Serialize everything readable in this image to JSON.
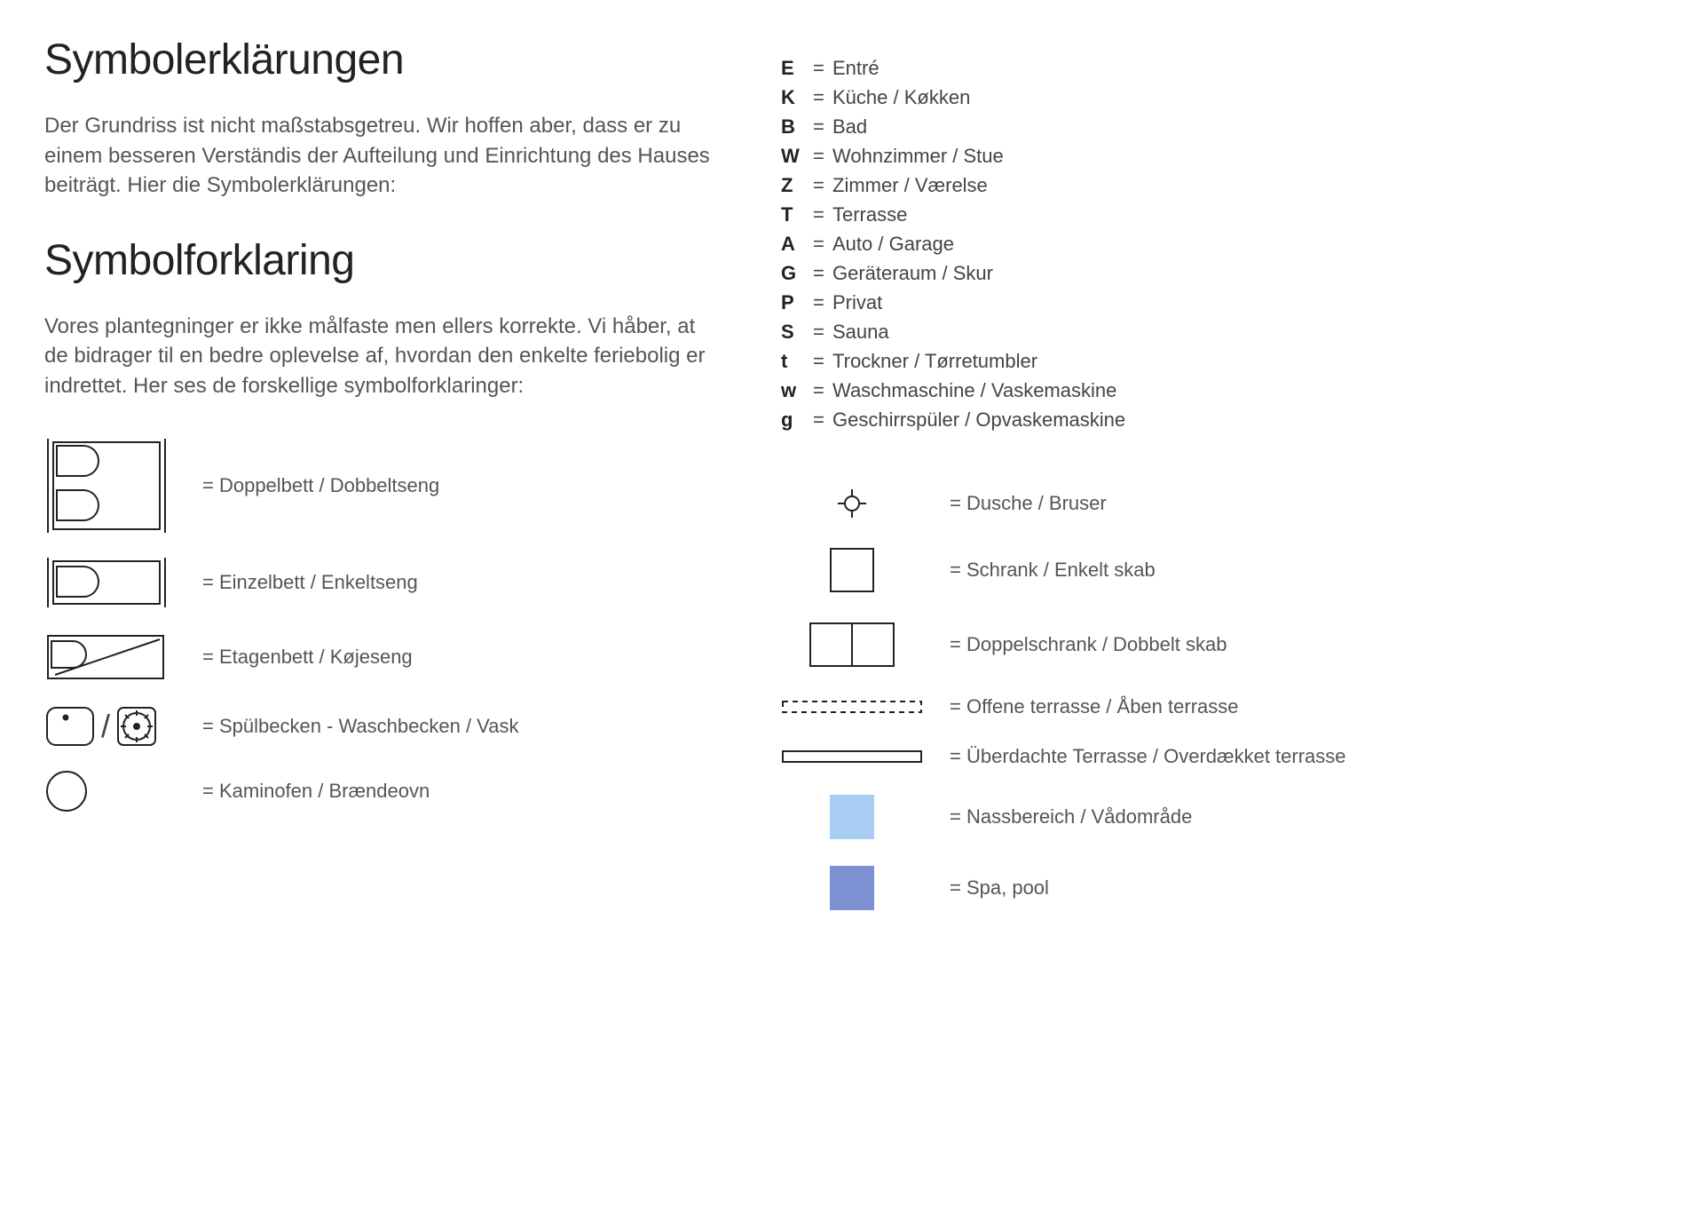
{
  "title_de": "Symbolerklärungen",
  "intro_de": "Der Grundriss ist nicht maßstabsgetreu. Wir hoffen aber, dass er zu einem besseren Verständis der Aufteilung und Einrichtung des Hauses beiträgt. Hier die Symbolerklärungen:",
  "title_dk": "Symbolforklaring",
  "intro_dk": "Vores plantegninger er ikke målfaste men ellers korrekte. Vi håber, at de bidrager til en bedre oplevelse af, hvordan den enkelte feriebolig er indrettet. Her ses de forskellige symbolforklaringer:",
  "abbrev": [
    {
      "key": "E",
      "val": "Entré"
    },
    {
      "key": "K",
      "val": "Küche / Køkken"
    },
    {
      "key": "B",
      "val": "Bad"
    },
    {
      "key": "W",
      "val": "Wohnzimmer / Stue"
    },
    {
      "key": "Z",
      "val": "Zimmer / Værelse"
    },
    {
      "key": "T",
      "val": "Terrasse"
    },
    {
      "key": "A",
      "val": "Auto / Garage"
    },
    {
      "key": "G",
      "val": "Geräteraum / Skur"
    },
    {
      "key": "P",
      "val": "Privat"
    },
    {
      "key": "S",
      "val": "Sauna"
    },
    {
      "key": "t",
      "val": "Trockner / Tørretumbler"
    },
    {
      "key": "w",
      "val": "Waschmaschine / Vaskemaskine"
    },
    {
      "key": "g",
      "val": "Geschirrspüler / Opvaskemaskine"
    }
  ],
  "left_legend": {
    "double_bed": "= Doppelbett / Dobbeltseng",
    "single_bed": "= Einzelbett / Enkeltseng",
    "bunk_bed": "= Etagenbett / Køjeseng",
    "sink": "= Spülbecken - Waschbecken / Vask",
    "stove": "= Kaminofen / Brændeovn"
  },
  "right_legend": {
    "shower": "= Dusche / Bruser",
    "wardrobe": "= Schrank / Enkelt skab",
    "double_wardrobe": "= Doppelschrank / Dobbelt skab",
    "open_terrace": "= Offene terrasse / Åben terrasse",
    "covered_terrace": "= Überdachte Terrasse / Overdækket terrasse",
    "wet_area": "= Nassbereich / Vådområde",
    "spa": "= Spa, pool"
  },
  "colors": {
    "stroke": "#222222",
    "wet_area": "#a8cdf5",
    "spa": "#7c91d1",
    "text_muted": "#555555"
  }
}
